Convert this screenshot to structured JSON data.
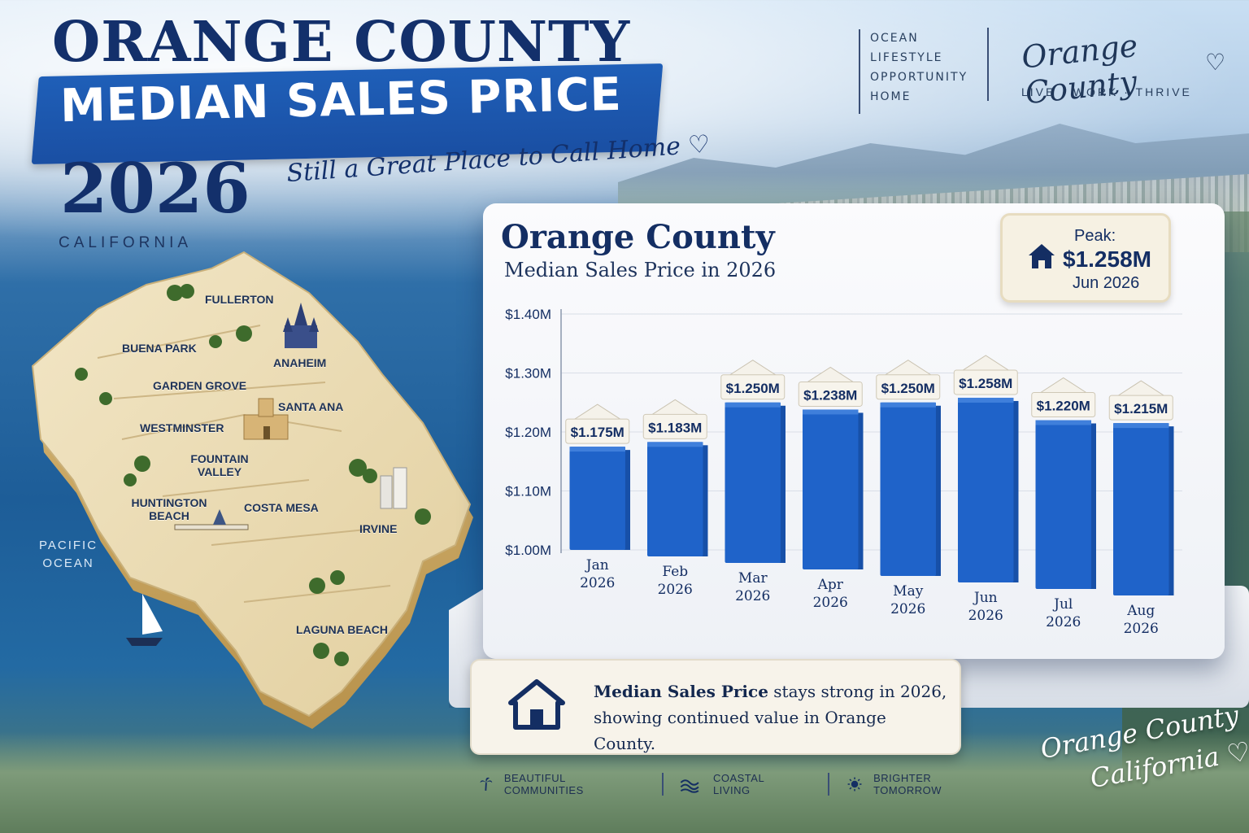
{
  "header": {
    "title": "ORANGE COUNTY",
    "subtitle": "MEDIAN SALES PRICE",
    "year": "2026",
    "state": "CALIFORNIA",
    "tagline": "Still a Great Place to Call Home ♡"
  },
  "lifestyle": {
    "words": [
      "OCEAN",
      "LIFESTYLE",
      "OPPORTUNITY",
      "HOME"
    ],
    "brand": "Orange County",
    "motto": "LIVE · WORK · THRIVE"
  },
  "map": {
    "cities": [
      "FULLERTON",
      "BUENA PARK",
      "ANAHEIM",
      "GARDEN GROVE",
      "SANTA ANA",
      "WESTMINSTER",
      "FOUNTAIN VALLEY",
      "HUNTINGTON BEACH",
      "COSTA MESA",
      "IRVINE",
      "LAGUNA BEACH"
    ],
    "ocean_label": "PACIFIC OCEAN"
  },
  "peak": {
    "label": "Peak:",
    "value": "$1.258M",
    "date": "Jun 2026"
  },
  "caption": {
    "bold": "Median Sales Price",
    "rest": " stays strong in 2026, showing continued value in Orange County."
  },
  "features": [
    {
      "icon": "palm-tree-icon",
      "label": "BEAUTIFUL COMMUNITIES"
    },
    {
      "icon": "waves-icon",
      "label": "COASTAL LIVING"
    },
    {
      "icon": "sun-icon",
      "label": "BRIGHTER TOMORROW"
    }
  ],
  "corner_script": {
    "line1": "Orange County",
    "line2": "California ♡"
  },
  "colors": {
    "navy": "#142e63",
    "bar_blue": "#1f63c9",
    "banner_blue": "#1f5fb8",
    "cream": "#f6f1e3"
  },
  "chart_data": {
    "type": "bar",
    "title": "Orange County",
    "subtitle": "Median Sales Price in 2026",
    "categories": [
      "Jan 2026",
      "Feb 2026",
      "Mar 2026",
      "Apr 2026",
      "May 2026",
      "Jun 2026",
      "Jul 2026",
      "Aug 2026"
    ],
    "category_lines": [
      [
        "Jan",
        "2026"
      ],
      [
        "Feb",
        "2026"
      ],
      [
        "Mar",
        "2026"
      ],
      [
        "Apr",
        "2026"
      ],
      [
        "May",
        "2026"
      ],
      [
        "Jun",
        "2026"
      ],
      [
        "Jul",
        "2026"
      ],
      [
        "Aug",
        "2026"
      ]
    ],
    "values": [
      1.175,
      1.183,
      1.25,
      1.238,
      1.25,
      1.258,
      1.22,
      1.215
    ],
    "value_labels": [
      "$1.175M",
      "$1.183M",
      "$1.250M",
      "$1.238M",
      "$1.250M",
      "$1.258M",
      "$1.220M",
      "$1.215M"
    ],
    "yticks": [
      1.0,
      1.1,
      1.2,
      1.3,
      1.4
    ],
    "ytick_labels": [
      "$1.00M",
      "$1.10M",
      "$1.20M",
      "$1.30M",
      "$1.40M"
    ],
    "ylim": [
      1.0,
      1.4
    ],
    "grid": true,
    "xlabel": "",
    "ylabel": ""
  }
}
